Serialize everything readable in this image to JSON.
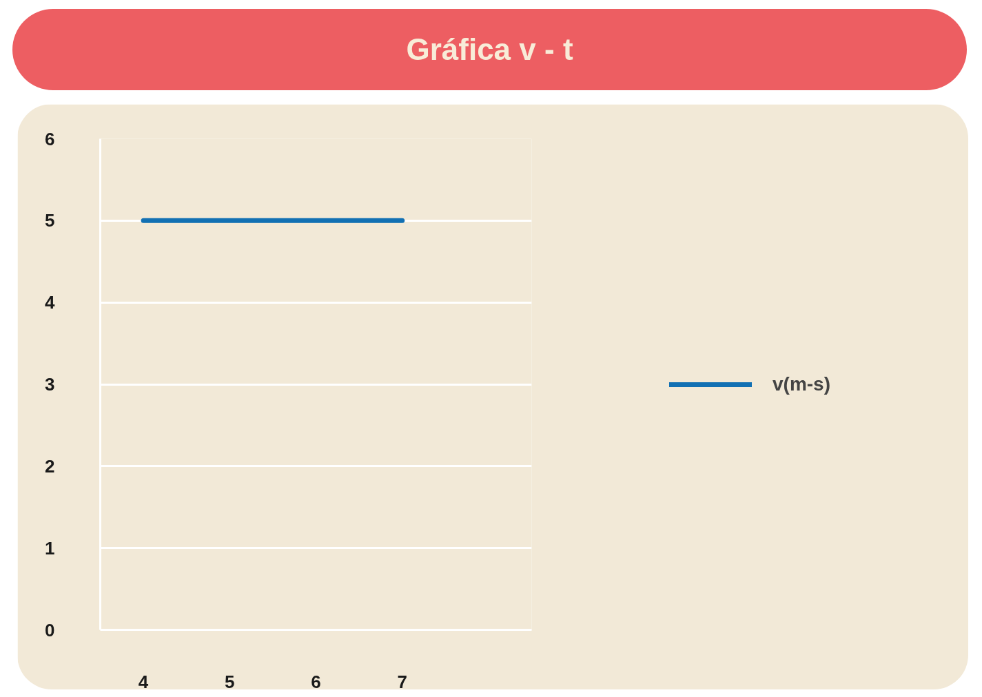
{
  "chart_data": {
    "type": "line",
    "title": "Gráfica v - t",
    "categories": [
      "4",
      "5",
      "6",
      "7",
      null
    ],
    "series": [
      {
        "name": "v(m-s)",
        "color": "#1270b3",
        "values": [
          5,
          5,
          5,
          5,
          null
        ]
      }
    ],
    "ylim": [
      0,
      6
    ],
    "yticks": [
      0,
      1,
      2,
      3,
      4,
      5,
      6
    ],
    "grid": "y",
    "legend": "right",
    "marker": "none",
    "line_style": "solid"
  }
}
